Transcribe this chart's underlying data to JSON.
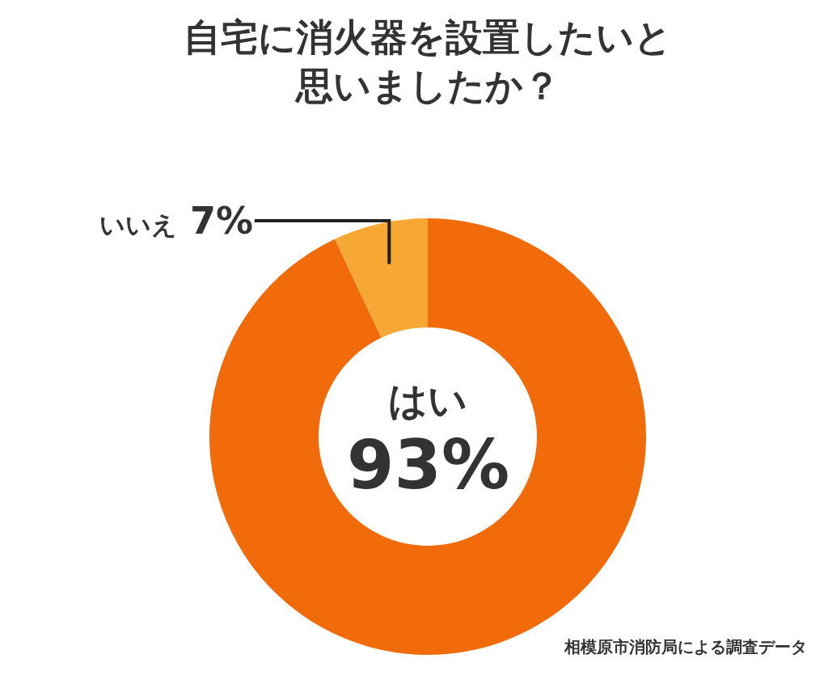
{
  "chart_data": {
    "type": "donut",
    "title": "自宅に消火器を設置したいと思いましたか？",
    "categories": [
      "はい",
      "いいえ"
    ],
    "values": [
      93,
      7
    ],
    "colors": [
      "#f26b0b",
      "#f7a733"
    ],
    "value_labels": [
      "93%",
      "7%"
    ],
    "annotations": [
      "相模原市消防局による調査データ"
    ]
  }
}
